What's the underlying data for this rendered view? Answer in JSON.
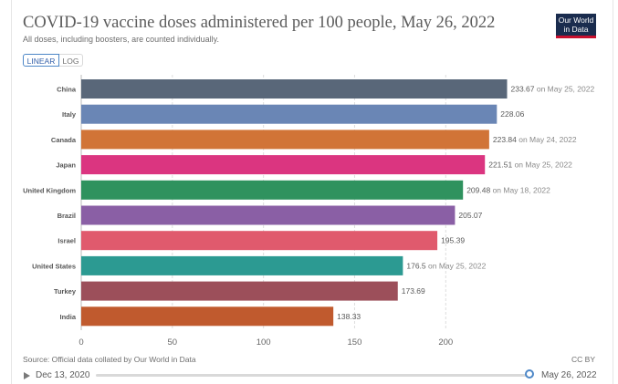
{
  "header": {
    "title": "COVID-19 vaccine doses administered per 100 people, May 26, 2022",
    "subtitle": "All doses, including boosters, are counted individually.",
    "logo_line1": "Our World",
    "logo_line2": "in Data"
  },
  "controls": {
    "linear_label": "LINEAR",
    "log_label": "LOG",
    "selected": "LINEAR"
  },
  "footer": {
    "source": "Source: Official data collated by Our World in Data",
    "license": "CC BY"
  },
  "timeline": {
    "start": "Dec 13, 2020",
    "end": "May 26, 2022",
    "position": 1.0
  },
  "colors": {
    "accent": "#4d87c7",
    "grid": "#dddddd"
  },
  "chart_data": {
    "type": "bar",
    "orientation": "horizontal",
    "categories": [
      "China",
      "Italy",
      "Canada",
      "Japan",
      "United Kingdom",
      "Brazil",
      "Israel",
      "United States",
      "Turkey",
      "India"
    ],
    "values": [
      233.67,
      228.06,
      223.84,
      221.51,
      209.48,
      205.07,
      195.39,
      176.5,
      173.69,
      138.33
    ],
    "value_labels": [
      "233.67",
      "228.06",
      "223.84",
      "221.51",
      "209.48",
      "205.07",
      "195.39",
      "176.5",
      "173.69",
      "138.33"
    ],
    "notes": [
      "on May 25, 2022",
      "",
      "on May 24, 2022",
      "on May 25, 2022",
      "on May 18, 2022",
      "",
      "",
      "on May 25, 2022",
      "",
      ""
    ],
    "colors": [
      "#596779",
      "#6a86b5",
      "#d17437",
      "#db3580",
      "#2f925e",
      "#8a5fa5",
      "#e05a6d",
      "#2c9a92",
      "#9c4f5a",
      "#c05a2e"
    ],
    "xticks": [
      "0",
      "50",
      "100",
      "150",
      "200"
    ],
    "xlim": [
      0,
      235
    ],
    "grid": true
  }
}
